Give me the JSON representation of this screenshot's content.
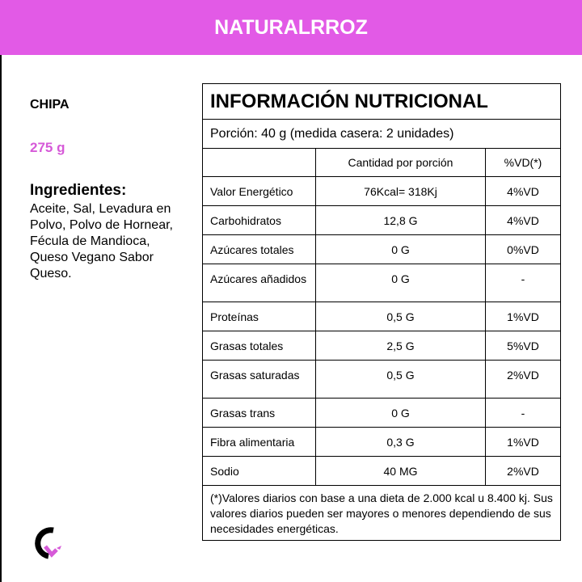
{
  "brand": "NATURALRROZ",
  "product": {
    "name": "CHIPA",
    "weight": "275 g",
    "ingredients_title": "Ingredientes:",
    "ingredients": "Aceite, Sal, Levadura en Polvo, Polvo de Hornear, Fécula de Mandioca, Queso Vegano Sabor Queso."
  },
  "table": {
    "title": "INFORMACIÓN NUTRICIONAL",
    "portion": "Porción: 40 g (medida casera: 2 unidades)",
    "headers": [
      "",
      "Cantidad  por porción",
      "%VD(*)"
    ],
    "rows": [
      [
        "Valor Energético",
        "76Kcal= 318Kj",
        "4%VD"
      ],
      [
        "Carbohidratos",
        "12,8 G",
        "4%VD"
      ],
      [
        "Azúcares totales",
        "0 G",
        "0%VD"
      ],
      [
        "Azúcares añadidos",
        "0 G",
        "-"
      ],
      [
        "Proteínas",
        "0,5 G",
        "1%VD"
      ],
      [
        "Grasas totales",
        "2,5 G",
        "5%VD"
      ],
      [
        "Grasas saturadas",
        "0,5 G",
        "2%VD"
      ],
      [
        "Grasas trans",
        "0 G",
        "-"
      ],
      [
        "Fibra alimentaria",
        "0,3 G",
        "1%VD"
      ],
      [
        "Sodio",
        "40 MG",
        "2%VD"
      ]
    ],
    "footnote": "(*)Valores diarios con base a una dieta de 2.000 kcal u 8.400 kj. Sus valores diarios pueden ser mayores o menores dependiendo de sus necesidades energéticas."
  },
  "colors": {
    "accent": "#e25ae6"
  }
}
